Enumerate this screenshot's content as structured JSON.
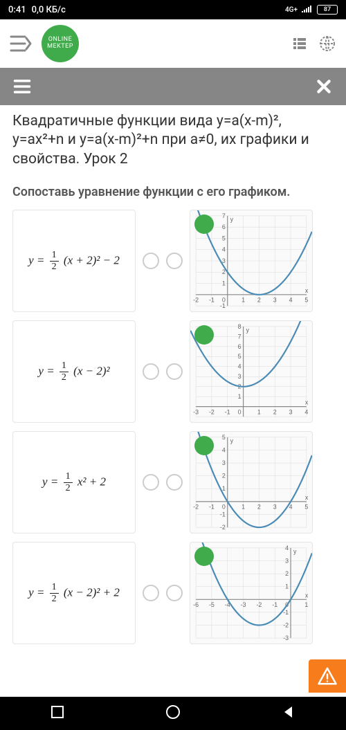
{
  "status": {
    "time": "0:41",
    "data_rate": "0,0 КБ/с",
    "net_label": "4G+",
    "battery": "87"
  },
  "logo": {
    "line1": "ONLINE",
    "line2": "MEKTEP"
  },
  "content": {
    "title": "Квадратичные функции вида y=a(x-m)², y=ax²+n и y=a(x-m)²+n при a≠0, их графики и свойства. Урок 2",
    "subtitle": "Сопоставь уравнение функции с его графиком."
  },
  "equations": {
    "eq1": {
      "tail": "(x + 2)² − 2"
    },
    "eq2": {
      "tail": "(x − 2)²"
    },
    "eq3": {
      "tail": "x² + 2"
    },
    "eq4": {
      "tail": "(x − 2)² + 2"
    }
  },
  "graphs": {
    "g1": {
      "curve_color": "#4a8bb5",
      "grid_color": "#d8d8d8",
      "axis_color": "#888",
      "bg": "#fafafa",
      "x_range": [
        -2,
        5
      ],
      "y_range": [
        -1,
        7
      ],
      "x_ticks": [
        -2,
        -1,
        0,
        1,
        2,
        3,
        4,
        5
      ],
      "y_ticks": [
        -1,
        1,
        2,
        3,
        4,
        5,
        6,
        7
      ],
      "vertex": [
        2,
        0
      ],
      "a": 0.5
    },
    "g2": {
      "curve_color": "#4a8bb5",
      "grid_color": "#d8d8d8",
      "axis_color": "#888",
      "bg": "#fafafa",
      "x_range": [
        -3,
        4
      ],
      "y_range": [
        -1,
        8
      ],
      "x_ticks": [
        -3,
        -2,
        -1,
        0,
        1,
        2,
        3,
        4
      ],
      "y_ticks": [
        1,
        2,
        3,
        4,
        5,
        6,
        7,
        8
      ],
      "vertex": [
        0,
        2
      ],
      "a": 0.5
    },
    "g3": {
      "curve_color": "#4a8bb5",
      "grid_color": "#d8d8d8",
      "axis_color": "#888",
      "bg": "#fafafa",
      "x_range": [
        -2,
        5
      ],
      "y_range": [
        -2,
        5
      ],
      "x_ticks": [
        -2,
        -1,
        0,
        1,
        2,
        3,
        4,
        5
      ],
      "y_ticks": [
        -2,
        -1,
        1,
        2,
        3,
        4,
        5
      ],
      "vertex": [
        2,
        -2
      ],
      "a": 0.5
    },
    "g4": {
      "curve_color": "#4a8bb5",
      "grid_color": "#d8d8d8",
      "axis_color": "#888",
      "bg": "#fafafa",
      "x_range": [
        -6,
        1
      ],
      "y_range": [
        -3,
        4
      ],
      "x_ticks": [
        -6,
        -5,
        -4,
        -3,
        -2,
        -1,
        0,
        1
      ],
      "y_ticks": [
        -3,
        -2,
        -1,
        1,
        2,
        3,
        4
      ],
      "vertex": [
        -2,
        -2
      ],
      "a": 0.5
    }
  },
  "colors": {
    "accent": "#3fab4a",
    "warn": "#f77c1b",
    "subbar": "#868686"
  }
}
